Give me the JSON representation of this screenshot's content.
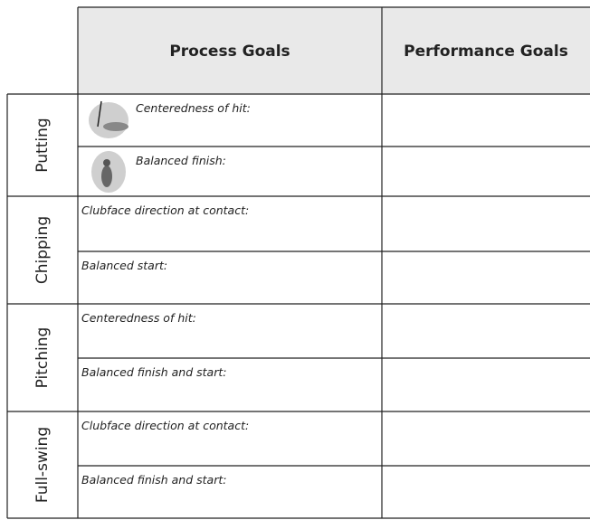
{
  "header": {
    "columns": [
      "Process Goals",
      "Performance Goals"
    ]
  },
  "groups": [
    {
      "label": "Putting",
      "rows": [
        "Centeredness of hit:",
        "Balanced finish:"
      ]
    },
    {
      "label": "Chipping",
      "rows": [
        "Clubface direction at contact:",
        "Balanced start:"
      ]
    },
    {
      "label": "Pitching",
      "rows": [
        "Centeredness of hit:",
        "Balanced finish and start:"
      ]
    },
    {
      "label": "Full-swing",
      "rows": [
        "Clubface direction at contact:",
        "Balanced finish and start:"
      ]
    }
  ]
}
